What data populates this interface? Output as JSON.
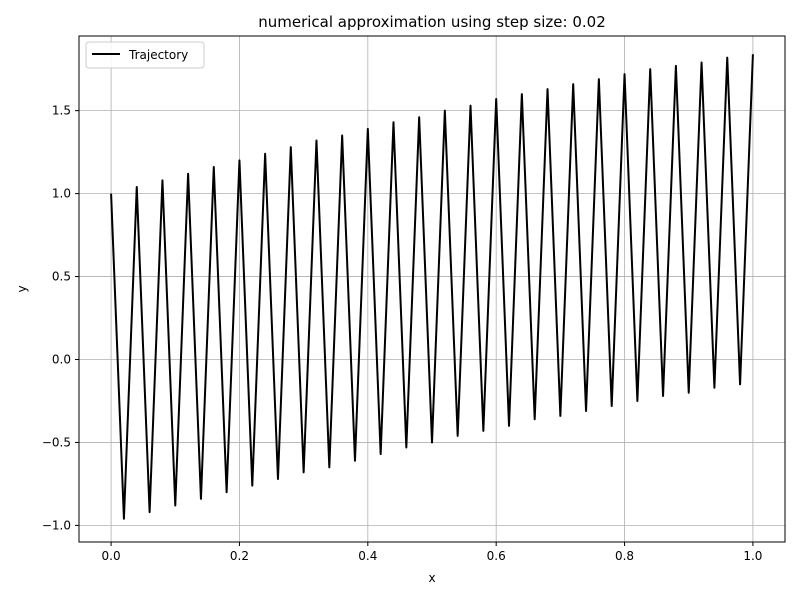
{
  "chart_data": {
    "type": "line",
    "title": "numerical approximation using step size: 0.02",
    "xlabel": "x",
    "ylabel": "y",
    "xlim": [
      -0.05,
      1.05
    ],
    "ylim": [
      -1.1,
      1.95
    ],
    "xticks": [
      0.0,
      0.2,
      0.4,
      0.6,
      0.8,
      1.0
    ],
    "xtick_labels": [
      "0.0",
      "0.2",
      "0.4",
      "0.6",
      "0.8",
      "1.0"
    ],
    "yticks": [
      -1.0,
      -0.5,
      0.0,
      0.5,
      1.0,
      1.5
    ],
    "ytick_labels": [
      "−1.0",
      "−0.5",
      "0.0",
      "0.5",
      "1.0",
      "1.5"
    ],
    "grid": true,
    "legend": {
      "position": "top-left",
      "entries": [
        "Trajectory"
      ]
    },
    "series": [
      {
        "name": "Trajectory",
        "color": "#000000",
        "x": [
          0.0,
          0.02,
          0.04,
          0.06,
          0.08,
          0.1,
          0.12,
          0.14,
          0.16,
          0.18,
          0.2,
          0.22,
          0.24,
          0.26,
          0.28,
          0.3,
          0.32,
          0.34,
          0.36,
          0.38,
          0.4,
          0.42,
          0.44,
          0.46,
          0.48,
          0.5,
          0.52,
          0.54,
          0.56,
          0.58,
          0.6,
          0.62,
          0.64,
          0.66,
          0.68,
          0.7,
          0.72,
          0.74,
          0.76,
          0.78,
          0.8,
          0.82,
          0.84,
          0.86,
          0.88,
          0.9,
          0.92,
          0.94,
          0.96,
          0.98,
          1.0
        ],
        "y": [
          1.0,
          -0.96,
          1.04,
          -0.92,
          1.08,
          -0.88,
          1.12,
          -0.84,
          1.16,
          -0.8,
          1.2,
          -0.76,
          1.24,
          -0.72,
          1.28,
          -0.68,
          1.32,
          -0.65,
          1.35,
          -0.61,
          1.39,
          -0.57,
          1.43,
          -0.53,
          1.46,
          -0.5,
          1.5,
          -0.46,
          1.53,
          -0.43,
          1.57,
          -0.4,
          1.6,
          -0.36,
          1.63,
          -0.34,
          1.66,
          -0.31,
          1.69,
          -0.28,
          1.72,
          -0.25,
          1.75,
          -0.22,
          1.77,
          -0.2,
          1.79,
          -0.17,
          1.82,
          -0.15,
          1.84
        ]
      }
    ]
  }
}
